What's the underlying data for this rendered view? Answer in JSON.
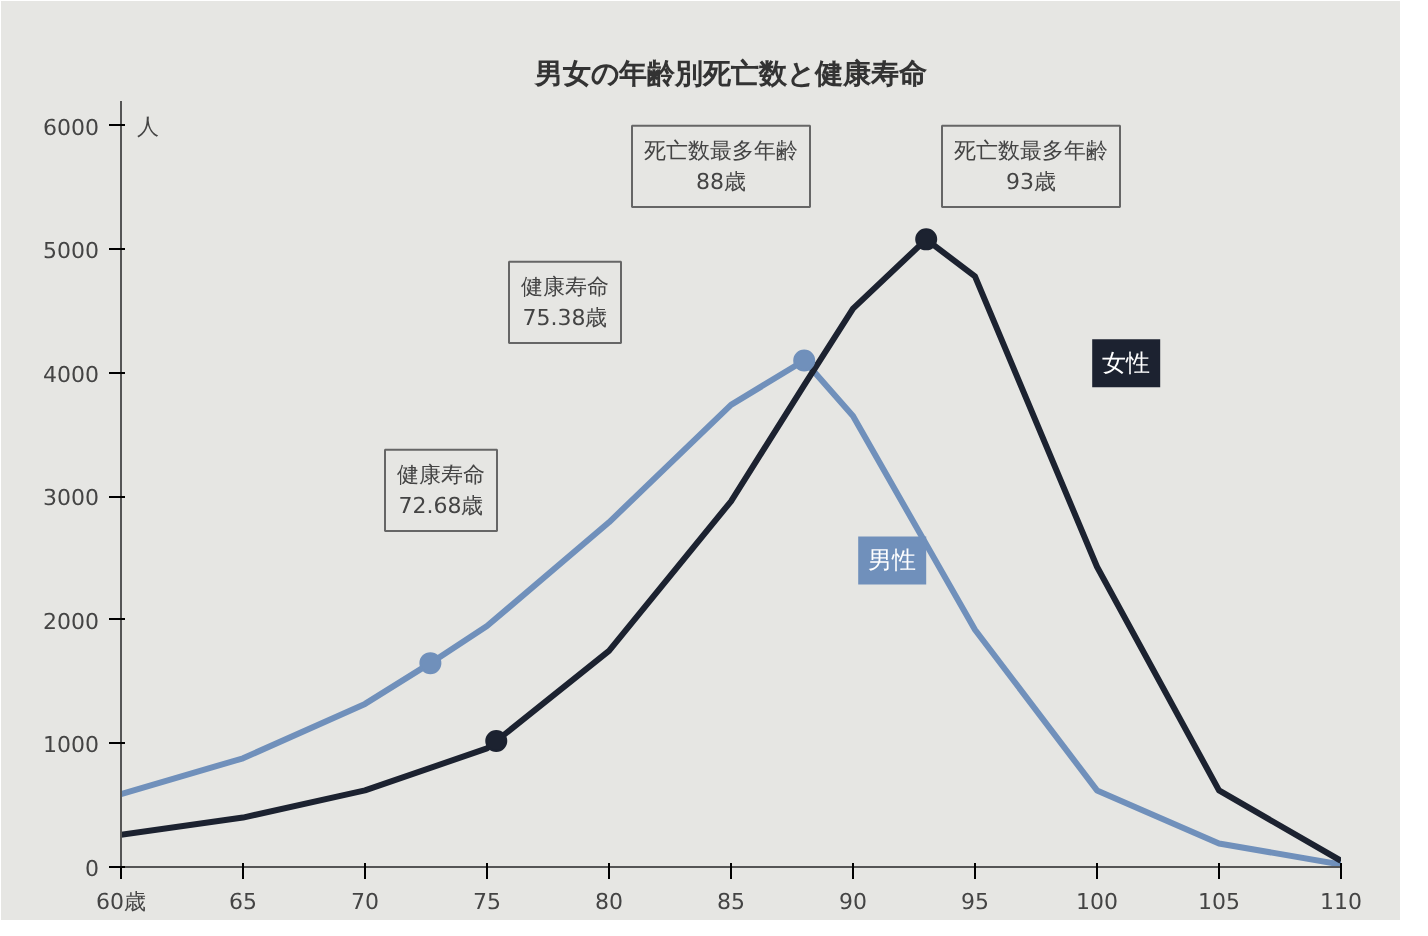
{
  "chart_data": {
    "type": "line",
    "title": "男女の年齢別死亡数と健康寿命",
    "ylabel": "人",
    "xlim": [
      60,
      110
    ],
    "ylim": [
      0,
      6200
    ],
    "xticks": [
      {
        "value": 60,
        "label": "60歳"
      },
      65,
      70,
      75,
      80,
      85,
      90,
      95,
      100,
      105,
      110
    ],
    "yticks": [
      0,
      1000,
      2000,
      3000,
      4000,
      5000,
      6000
    ],
    "legend": false,
    "line_style": "solid",
    "series": [
      {
        "name": "男性",
        "color": "#7090bb",
        "x": [
          60,
          65,
          70,
          72.68,
          75,
          80,
          85,
          88,
          90,
          95,
          100,
          105,
          110
        ],
        "values": [
          590,
          880,
          1320,
          1650,
          1950,
          2790,
          3740,
          4100,
          3650,
          1920,
          620,
          190,
          20
        ]
      },
      {
        "name": "女性",
        "color": "#1c2230",
        "x": [
          60,
          65,
          70,
          75,
          75.38,
          80,
          85,
          88,
          90,
          93,
          95,
          100,
          105,
          110
        ],
        "values": [
          260,
          400,
          620,
          960,
          1020,
          1750,
          2960,
          3900,
          4520,
          5080,
          4780,
          2430,
          620,
          50
        ]
      },
      {
        "type": "scatter",
        "color": "#7090bb",
        "x": [
          72.68,
          88
        ],
        "values": [
          1650,
          4100
        ]
      },
      {
        "type": "scatter",
        "color": "#1c2230",
        "x": [
          75.38,
          93
        ],
        "values": [
          1020,
          5080
        ]
      }
    ],
    "annotations": [
      "健康寿命\n72.68歳",
      "健康寿命\n75.38歳",
      "死亡数最多年齢\n88歳",
      "死亡数最多年齢\n93歳"
    ]
  }
}
